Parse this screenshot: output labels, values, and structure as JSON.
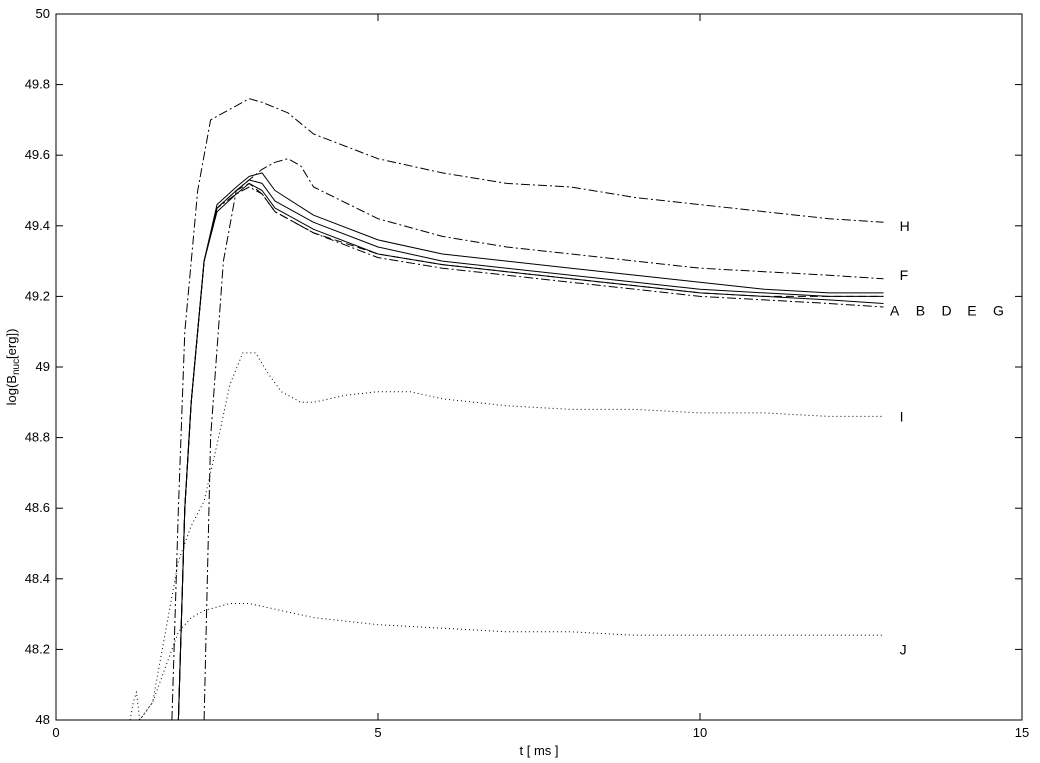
{
  "chart_data": {
    "type": "line",
    "xlabel": "t [ ms ]",
    "ylabel": {
      "prefix": "log(B",
      "sub": "nuc",
      "suffix": "[erg])"
    },
    "xlim": [
      0,
      15
    ],
    "ylim": [
      48,
      50
    ],
    "xticks": [
      "0",
      "5",
      "10",
      "15"
    ],
    "yticks": [
      "48",
      "48.2",
      "48.4",
      "48.6",
      "48.8",
      "49",
      "49.2",
      "49.4",
      "49.6",
      "49.8",
      "50"
    ],
    "grid": false,
    "legend": "inline labels at right end of lines",
    "series": [
      {
        "name": "H",
        "style": "dashdot",
        "x": [
          1.8,
          1.9,
          2.0,
          2.2,
          2.4,
          2.6,
          2.8,
          3.0,
          3.2,
          3.6,
          4.0,
          5.0,
          6.0,
          7.0,
          8.0,
          9.0,
          10.0,
          11.0,
          12.0,
          12.85
        ],
        "y": [
          48.0,
          48.6,
          49.1,
          49.5,
          49.7,
          49.72,
          49.74,
          49.76,
          49.75,
          49.72,
          49.66,
          49.59,
          49.55,
          49.52,
          49.51,
          49.48,
          49.46,
          49.44,
          49.42,
          49.41
        ]
      },
      {
        "name": "F",
        "style": "dashdot",
        "x": [
          2.3,
          2.4,
          2.6,
          2.8,
          3.0,
          3.2,
          3.4,
          3.6,
          3.8,
          4.0,
          5.0,
          6.0,
          7.0,
          8.0,
          9.0,
          10.0,
          11.0,
          12.0,
          12.85
        ],
        "y": [
          48.0,
          48.8,
          49.3,
          49.5,
          49.53,
          49.56,
          49.58,
          49.59,
          49.57,
          49.51,
          49.42,
          49.37,
          49.34,
          49.32,
          49.3,
          49.28,
          49.27,
          49.26,
          49.25
        ]
      },
      {
        "name": "A",
        "style": "solid",
        "x": [
          1.9,
          2.0,
          2.1,
          2.3,
          2.5,
          2.8,
          3.0,
          3.2,
          3.4,
          4.0,
          5.0,
          6.0,
          7.0,
          8.0,
          9.0,
          10.0,
          11.0,
          12.0,
          12.85
        ],
        "y": [
          48.0,
          48.6,
          48.9,
          49.3,
          49.46,
          49.51,
          49.54,
          49.55,
          49.5,
          49.43,
          49.36,
          49.32,
          49.3,
          49.28,
          49.26,
          49.24,
          49.22,
          49.21,
          49.21
        ]
      },
      {
        "name": "B",
        "style": "solid",
        "x": [
          1.9,
          2.0,
          2.1,
          2.3,
          2.5,
          2.8,
          3.0,
          3.2,
          3.4,
          4.0,
          5.0,
          6.0,
          7.0,
          8.0,
          9.0,
          10.0,
          11.0,
          12.0,
          12.85
        ],
        "y": [
          48.0,
          48.6,
          48.9,
          49.3,
          49.45,
          49.5,
          49.53,
          49.52,
          49.47,
          49.41,
          49.34,
          49.3,
          49.28,
          49.26,
          49.24,
          49.22,
          49.21,
          49.2,
          49.2
        ]
      },
      {
        "name": "D",
        "style": "solid",
        "x": [
          1.9,
          2.0,
          2.1,
          2.3,
          2.5,
          2.8,
          3.0,
          3.2,
          3.4,
          4.0,
          5.0,
          6.0,
          7.0,
          8.0,
          9.0,
          10.0,
          11.0,
          12.0,
          12.85
        ],
        "y": [
          48.0,
          48.6,
          48.9,
          49.3,
          49.44,
          49.49,
          49.52,
          49.5,
          49.45,
          49.39,
          49.32,
          49.29,
          49.27,
          49.25,
          49.23,
          49.21,
          49.2,
          49.19,
          49.18
        ]
      },
      {
        "name": "E",
        "style": "dashed",
        "x": [
          1.9,
          2.0,
          2.1,
          2.3,
          2.5,
          2.8,
          3.0,
          3.2,
          3.4,
          4.0,
          5.0,
          6.0,
          7.0,
          8.0,
          9.0,
          10.0,
          11.0,
          12.0,
          12.85
        ],
        "y": [
          48.0,
          48.6,
          48.9,
          49.3,
          49.45,
          49.5,
          49.52,
          49.49,
          49.44,
          49.38,
          49.32,
          49.29,
          49.27,
          49.25,
          49.23,
          49.21,
          49.2,
          49.2,
          49.2
        ]
      },
      {
        "name": "G",
        "style": "dashdot",
        "x": [
          1.9,
          2.0,
          2.1,
          2.3,
          2.5,
          2.8,
          3.0,
          3.2,
          3.4,
          4.0,
          5.0,
          6.0,
          7.0,
          8.0,
          9.0,
          10.0,
          11.0,
          12.0,
          12.85
        ],
        "y": [
          48.0,
          48.6,
          48.9,
          49.3,
          49.45,
          49.49,
          49.51,
          49.49,
          49.44,
          49.38,
          49.31,
          49.28,
          49.26,
          49.24,
          49.22,
          49.2,
          49.19,
          49.18,
          49.17
        ]
      },
      {
        "name": "I",
        "style": "dotted",
        "x": [
          1.3,
          1.5,
          1.7,
          1.9,
          2.1,
          2.3,
          2.5,
          2.7,
          2.9,
          3.1,
          3.3,
          3.5,
          3.8,
          4.0,
          4.5,
          5.0,
          5.5,
          6.0,
          7.0,
          8.0,
          9.0,
          10.0,
          11.0,
          12.0,
          12.85
        ],
        "y": [
          48.0,
          48.05,
          48.25,
          48.45,
          48.55,
          48.62,
          48.78,
          48.95,
          49.04,
          49.04,
          48.98,
          48.93,
          48.9,
          48.9,
          48.92,
          48.93,
          48.93,
          48.91,
          48.89,
          48.88,
          48.88,
          48.87,
          48.87,
          48.86,
          48.86
        ]
      },
      {
        "name": "J",
        "style": "dotted",
        "x": [
          1.15,
          1.2,
          1.25,
          1.3,
          1.5,
          1.7,
          1.9,
          2.1,
          2.3,
          2.5,
          2.7,
          3.0,
          3.5,
          4.0,
          4.5,
          5.0,
          6.0,
          7.0,
          8.0,
          9.0,
          10.0,
          11.0,
          12.0,
          12.85
        ],
        "y": [
          48.0,
          48.05,
          48.08,
          48.0,
          48.05,
          48.15,
          48.25,
          48.29,
          48.31,
          48.32,
          48.33,
          48.33,
          48.31,
          48.29,
          48.28,
          48.27,
          48.26,
          48.25,
          48.25,
          48.24,
          48.24,
          48.24,
          48.24,
          48.24
        ]
      }
    ],
    "labels": [
      {
        "text": "H",
        "x": 13.1,
        "y": 49.4
      },
      {
        "text": "F",
        "x": 13.1,
        "y": 49.26
      },
      {
        "text": "A",
        "x": 12.95,
        "y": 49.16
      },
      {
        "text": "B",
        "x": 13.35,
        "y": 49.16
      },
      {
        "text": "D",
        "x": 13.75,
        "y": 49.16
      },
      {
        "text": "E",
        "x": 14.15,
        "y": 49.16
      },
      {
        "text": "G",
        "x": 14.55,
        "y": 49.16
      },
      {
        "text": "I",
        "x": 13.1,
        "y": 48.86
      },
      {
        "text": "J",
        "x": 13.1,
        "y": 48.2
      }
    ]
  }
}
